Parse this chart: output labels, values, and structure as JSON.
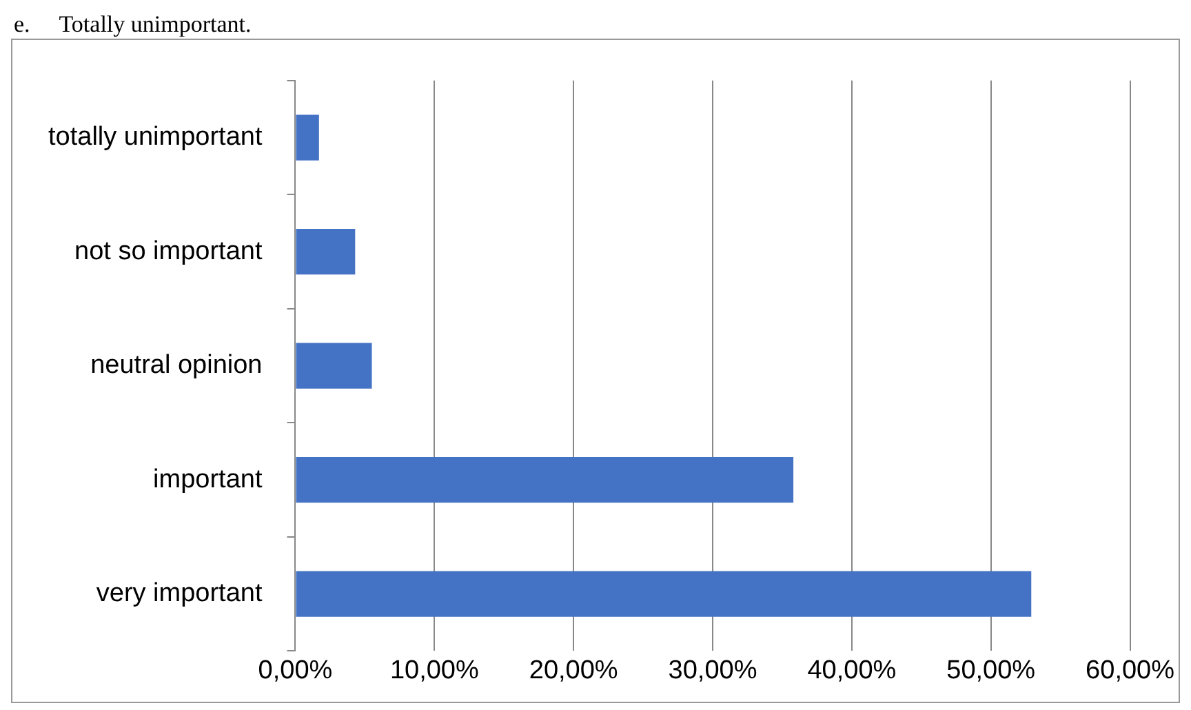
{
  "chart_data": {
    "type": "bar",
    "orientation": "horizontal",
    "annotations": [
      "e.     Totally unimportant."
    ],
    "categories": [
      "totally unimportant",
      "not so important",
      "neutral opinion",
      "important",
      "very important"
    ],
    "values": [
      1.7,
      4.3,
      5.5,
      35.8,
      52.9
    ],
    "color": "#4472c4",
    "xlim": [
      0,
      60
    ],
    "xticks": [
      {
        "value": 0,
        "label": "0,00%"
      },
      {
        "value": 10,
        "label": "10,00%"
      },
      {
        "value": 20,
        "label": "20,00%"
      },
      {
        "value": 30,
        "label": "30,00%"
      },
      {
        "value": 40,
        "label": "40,00%"
      },
      {
        "value": 50,
        "label": "50,00%"
      },
      {
        "value": 60,
        "label": "60,00%"
      }
    ],
    "grid": "x",
    "legend": false
  }
}
